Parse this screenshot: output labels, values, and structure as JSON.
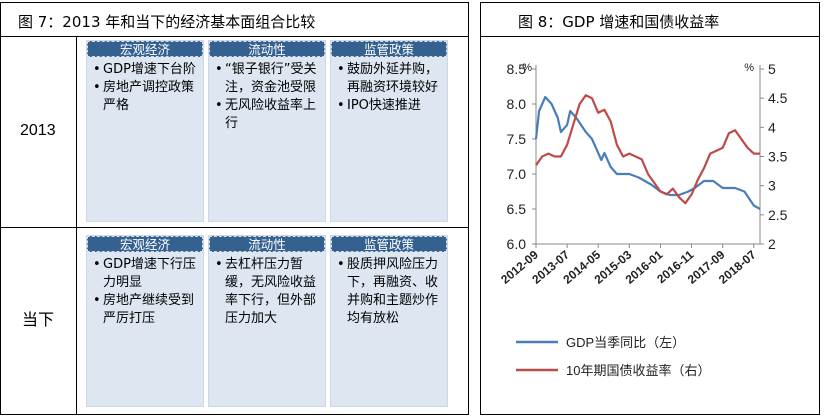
{
  "left": {
    "title": "图 7：2013 年和当下的经济基本面组合比较",
    "rows": [
      {
        "label": "2013",
        "columns": [
          {
            "header": "宏观经济",
            "items": [
              "GDP增速下台阶",
              "房地产调控政策严格"
            ]
          },
          {
            "header": "流动性",
            "items": [
              "“银子银行”受关注，资金池受限",
              "无风险收益率上行"
            ]
          },
          {
            "header": "监管政策",
            "items": [
              "鼓励外延并购，再融资环境较好",
              "IPO快速推进"
            ]
          }
        ]
      },
      {
        "label": "当下",
        "columns": [
          {
            "header": "宏观经济",
            "items": [
              "GDP增速下行压力明显",
              "房地产继续受到严厉打压"
            ]
          },
          {
            "header": "流动性",
            "items": [
              "去杠杆压力暂缓，无风险收益率下行，但外部压力加大"
            ]
          },
          {
            "header": "监管政策",
            "items": [
              "股质押风险压力下，再融资、收并购和主题炒作均有放松"
            ]
          }
        ]
      }
    ]
  },
  "right": {
    "title": "图 8：GDP 增速和国债收益率",
    "chart_data": {
      "type": "line",
      "x_ticks": [
        "2012-09",
        "2013-07",
        "2014-05",
        "2015-03",
        "2016-01",
        "2016-11",
        "2017-09",
        "2018-07"
      ],
      "y_left": {
        "unit": "%",
        "min": 6.0,
        "max": 8.5,
        "ticks": [
          "6.0",
          "6.5",
          "7.0",
          "7.5",
          "8.0",
          "8.5"
        ]
      },
      "y_right": {
        "unit": "%",
        "min": 2,
        "max": 5,
        "ticks": [
          "2",
          "2.5",
          "3",
          "3.5",
          "4",
          "4.5",
          "5"
        ]
      },
      "series": [
        {
          "name": "GDP当季同比（左）",
          "color": "#4a7ebb",
          "axis": "left",
          "points": [
            [
              "2012-09",
              7.5
            ],
            [
              "2012-10",
              7.9
            ],
            [
              "2012-12",
              8.1
            ],
            [
              "2013-02",
              8.0
            ],
            [
              "2013-04",
              7.8
            ],
            [
              "2013-05",
              7.6
            ],
            [
              "2013-07",
              7.7
            ],
            [
              "2013-08",
              7.9
            ],
            [
              "2013-10",
              7.8
            ],
            [
              "2014-01",
              7.6
            ],
            [
              "2014-03",
              7.5
            ],
            [
              "2014-04",
              7.4
            ],
            [
              "2014-06",
              7.2
            ],
            [
              "2014-07",
              7.3
            ],
            [
              "2014-09",
              7.1
            ],
            [
              "2014-11",
              7.0
            ],
            [
              "2015-03",
              7.0
            ],
            [
              "2015-06",
              6.95
            ],
            [
              "2015-10",
              6.85
            ],
            [
              "2016-01",
              6.75
            ],
            [
              "2016-04",
              6.7
            ],
            [
              "2016-07",
              6.7
            ],
            [
              "2016-10",
              6.75
            ],
            [
              "2016-12",
              6.8
            ],
            [
              "2017-03",
              6.9
            ],
            [
              "2017-06",
              6.9
            ],
            [
              "2017-09",
              6.8
            ],
            [
              "2018-01",
              6.8
            ],
            [
              "2018-04",
              6.75
            ],
            [
              "2018-07",
              6.55
            ],
            [
              "2018-09",
              6.5
            ]
          ]
        },
        {
          "name": "10年期国债收益率（右）",
          "color": "#be4b48",
          "axis": "right",
          "points": [
            [
              "2012-09",
              3.35
            ],
            [
              "2012-11",
              3.5
            ],
            [
              "2013-01",
              3.55
            ],
            [
              "2013-03",
              3.5
            ],
            [
              "2013-05",
              3.5
            ],
            [
              "2013-07",
              3.7
            ],
            [
              "2013-09",
              4.05
            ],
            [
              "2013-11",
              4.4
            ],
            [
              "2014-01",
              4.55
            ],
            [
              "2014-03",
              4.5
            ],
            [
              "2014-05",
              4.25
            ],
            [
              "2014-07",
              4.3
            ],
            [
              "2014-09",
              4.1
            ],
            [
              "2014-11",
              3.7
            ],
            [
              "2015-01",
              3.5
            ],
            [
              "2015-03",
              3.55
            ],
            [
              "2015-05",
              3.5
            ],
            [
              "2015-07",
              3.45
            ],
            [
              "2015-09",
              3.2
            ],
            [
              "2015-11",
              3.05
            ],
            [
              "2016-01",
              2.9
            ],
            [
              "2016-03",
              2.85
            ],
            [
              "2016-05",
              2.95
            ],
            [
              "2016-07",
              2.8
            ],
            [
              "2016-09",
              2.7
            ],
            [
              "2016-11",
              2.85
            ],
            [
              "2017-01",
              3.1
            ],
            [
              "2017-03",
              3.3
            ],
            [
              "2017-05",
              3.55
            ],
            [
              "2017-07",
              3.6
            ],
            [
              "2017-09",
              3.65
            ],
            [
              "2017-11",
              3.9
            ],
            [
              "2018-01",
              3.95
            ],
            [
              "2018-03",
              3.8
            ],
            [
              "2018-05",
              3.65
            ],
            [
              "2018-07",
              3.55
            ],
            [
              "2018-09",
              3.55
            ]
          ]
        }
      ]
    }
  }
}
